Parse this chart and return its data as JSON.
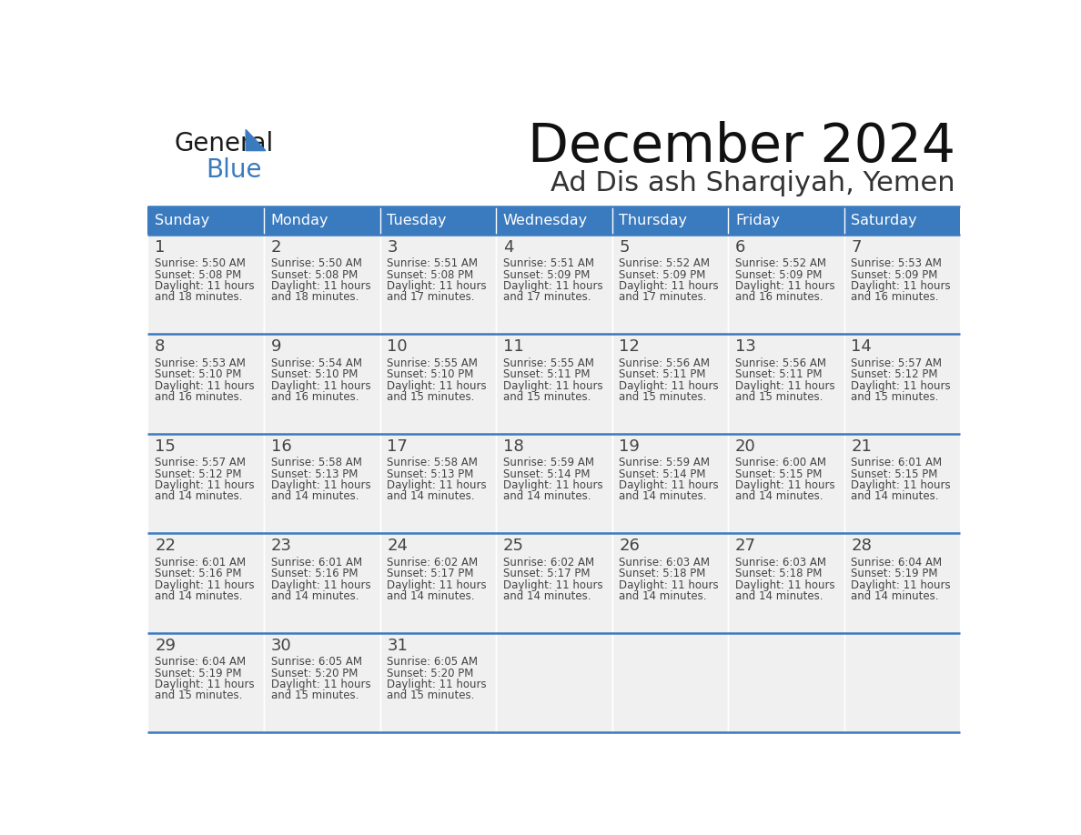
{
  "title": "December 2024",
  "subtitle": "Ad Dis ash Sharqiyah, Yemen",
  "days_of_week": [
    "Sunday",
    "Monday",
    "Tuesday",
    "Wednesday",
    "Thursday",
    "Friday",
    "Saturday"
  ],
  "header_bg": "#3a7abf",
  "header_text_color": "#ffffff",
  "cell_bg": "#f0f0f0",
  "border_color": "#3a7abf",
  "text_color": "#444444",
  "logo_general_color": "#1a1a1a",
  "logo_blue_color": "#3a7abf",
  "logo_triangle_color": "#3a7abf",
  "calendar_data": [
    [
      {
        "day": 1,
        "sunrise": "5:50 AM",
        "sunset": "5:08 PM",
        "hours": 11,
        "minutes": 18
      },
      {
        "day": 2,
        "sunrise": "5:50 AM",
        "sunset": "5:08 PM",
        "hours": 11,
        "minutes": 18
      },
      {
        "day": 3,
        "sunrise": "5:51 AM",
        "sunset": "5:08 PM",
        "hours": 11,
        "minutes": 17
      },
      {
        "day": 4,
        "sunrise": "5:51 AM",
        "sunset": "5:09 PM",
        "hours": 11,
        "minutes": 17
      },
      {
        "day": 5,
        "sunrise": "5:52 AM",
        "sunset": "5:09 PM",
        "hours": 11,
        "minutes": 17
      },
      {
        "day": 6,
        "sunrise": "5:52 AM",
        "sunset": "5:09 PM",
        "hours": 11,
        "minutes": 16
      },
      {
        "day": 7,
        "sunrise": "5:53 AM",
        "sunset": "5:09 PM",
        "hours": 11,
        "minutes": 16
      }
    ],
    [
      {
        "day": 8,
        "sunrise": "5:53 AM",
        "sunset": "5:10 PM",
        "hours": 11,
        "minutes": 16
      },
      {
        "day": 9,
        "sunrise": "5:54 AM",
        "sunset": "5:10 PM",
        "hours": 11,
        "minutes": 16
      },
      {
        "day": 10,
        "sunrise": "5:55 AM",
        "sunset": "5:10 PM",
        "hours": 11,
        "minutes": 15
      },
      {
        "day": 11,
        "sunrise": "5:55 AM",
        "sunset": "5:11 PM",
        "hours": 11,
        "minutes": 15
      },
      {
        "day": 12,
        "sunrise": "5:56 AM",
        "sunset": "5:11 PM",
        "hours": 11,
        "minutes": 15
      },
      {
        "day": 13,
        "sunrise": "5:56 AM",
        "sunset": "5:11 PM",
        "hours": 11,
        "minutes": 15
      },
      {
        "day": 14,
        "sunrise": "5:57 AM",
        "sunset": "5:12 PM",
        "hours": 11,
        "minutes": 15
      }
    ],
    [
      {
        "day": 15,
        "sunrise": "5:57 AM",
        "sunset": "5:12 PM",
        "hours": 11,
        "minutes": 14
      },
      {
        "day": 16,
        "sunrise": "5:58 AM",
        "sunset": "5:13 PM",
        "hours": 11,
        "minutes": 14
      },
      {
        "day": 17,
        "sunrise": "5:58 AM",
        "sunset": "5:13 PM",
        "hours": 11,
        "minutes": 14
      },
      {
        "day": 18,
        "sunrise": "5:59 AM",
        "sunset": "5:14 PM",
        "hours": 11,
        "minutes": 14
      },
      {
        "day": 19,
        "sunrise": "5:59 AM",
        "sunset": "5:14 PM",
        "hours": 11,
        "minutes": 14
      },
      {
        "day": 20,
        "sunrise": "6:00 AM",
        "sunset": "5:15 PM",
        "hours": 11,
        "minutes": 14
      },
      {
        "day": 21,
        "sunrise": "6:01 AM",
        "sunset": "5:15 PM",
        "hours": 11,
        "minutes": 14
      }
    ],
    [
      {
        "day": 22,
        "sunrise": "6:01 AM",
        "sunset": "5:16 PM",
        "hours": 11,
        "minutes": 14
      },
      {
        "day": 23,
        "sunrise": "6:01 AM",
        "sunset": "5:16 PM",
        "hours": 11,
        "minutes": 14
      },
      {
        "day": 24,
        "sunrise": "6:02 AM",
        "sunset": "5:17 PM",
        "hours": 11,
        "minutes": 14
      },
      {
        "day": 25,
        "sunrise": "6:02 AM",
        "sunset": "5:17 PM",
        "hours": 11,
        "minutes": 14
      },
      {
        "day": 26,
        "sunrise": "6:03 AM",
        "sunset": "5:18 PM",
        "hours": 11,
        "minutes": 14
      },
      {
        "day": 27,
        "sunrise": "6:03 AM",
        "sunset": "5:18 PM",
        "hours": 11,
        "minutes": 14
      },
      {
        "day": 28,
        "sunrise": "6:04 AM",
        "sunset": "5:19 PM",
        "hours": 11,
        "minutes": 14
      }
    ],
    [
      {
        "day": 29,
        "sunrise": "6:04 AM",
        "sunset": "5:19 PM",
        "hours": 11,
        "minutes": 15
      },
      {
        "day": 30,
        "sunrise": "6:05 AM",
        "sunset": "5:20 PM",
        "hours": 11,
        "minutes": 15
      },
      {
        "day": 31,
        "sunrise": "6:05 AM",
        "sunset": "5:20 PM",
        "hours": 11,
        "minutes": 15
      },
      null,
      null,
      null,
      null
    ]
  ]
}
